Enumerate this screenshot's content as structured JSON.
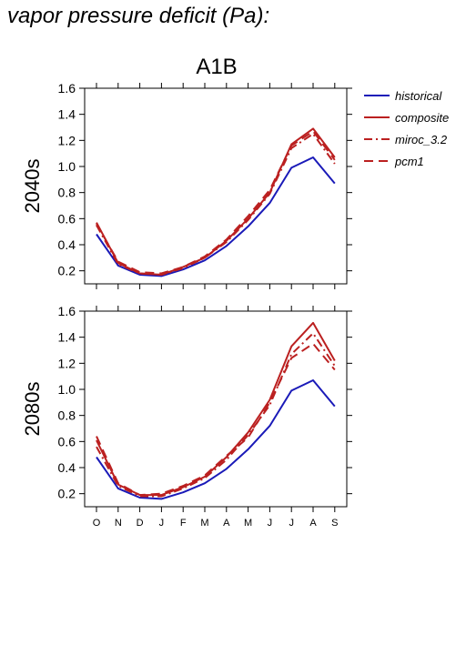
{
  "page": {
    "title": "vapor pressure deficit (Pa):"
  },
  "legend": [
    {
      "name": "historical",
      "color": "#1a1ab8",
      "dash": "solid"
    },
    {
      "name": "composite",
      "color": "#bb2020",
      "dash": "solid"
    },
    {
      "name": "miroc_3.2",
      "color": "#bb2020",
      "dash": "dashdot"
    },
    {
      "name": "pcm1",
      "color": "#bb2020",
      "dash": "dashed"
    }
  ],
  "chart_data": [
    {
      "type": "line",
      "title": "A1B",
      "ylabel": "2040s",
      "xlabel": "",
      "categories": [
        "O",
        "N",
        "D",
        "J",
        "F",
        "M",
        "A",
        "M",
        "J",
        "J",
        "A",
        "S"
      ],
      "ylim": [
        0.1,
        1.6
      ],
      "yticks": [
        "0.2",
        "0.4",
        "0.6",
        "0.8",
        "1.0",
        "1.2",
        "1.4",
        "1.6"
      ],
      "show_x_ticklabels": false,
      "series": [
        {
          "name": "historical",
          "values": [
            0.48,
            0.24,
            0.17,
            0.16,
            0.21,
            0.28,
            0.39,
            0.54,
            0.72,
            0.99,
            1.07,
            0.87
          ]
        },
        {
          "name": "composite",
          "values": [
            0.57,
            0.26,
            0.18,
            0.17,
            0.23,
            0.3,
            0.43,
            0.6,
            0.8,
            1.17,
            1.29,
            1.07
          ]
        },
        {
          "name": "miroc_3.2",
          "values": [
            0.55,
            0.25,
            0.18,
            0.17,
            0.22,
            0.3,
            0.42,
            0.59,
            0.79,
            1.14,
            1.25,
            1.02
          ]
        },
        {
          "name": "pcm1",
          "values": [
            0.56,
            0.27,
            0.19,
            0.18,
            0.23,
            0.31,
            0.44,
            0.62,
            0.82,
            1.16,
            1.27,
            1.05
          ]
        }
      ]
    },
    {
      "type": "line",
      "title": "",
      "ylabel": "2080s",
      "xlabel": "",
      "categories": [
        "O",
        "N",
        "D",
        "J",
        "F",
        "M",
        "A",
        "M",
        "J",
        "J",
        "A",
        "S"
      ],
      "ylim": [
        0.1,
        1.6
      ],
      "yticks": [
        "0.2",
        "0.4",
        "0.6",
        "0.8",
        "1.0",
        "1.2",
        "1.4",
        "1.6"
      ],
      "show_x_ticklabels": true,
      "series": [
        {
          "name": "historical",
          "values": [
            0.48,
            0.24,
            0.17,
            0.16,
            0.21,
            0.28,
            0.39,
            0.54,
            0.72,
            0.99,
            1.07,
            0.87
          ]
        },
        {
          "name": "composite",
          "values": [
            0.61,
            0.27,
            0.19,
            0.19,
            0.25,
            0.33,
            0.48,
            0.67,
            0.92,
            1.33,
            1.51,
            1.22
          ]
        },
        {
          "name": "miroc_3.2",
          "values": [
            0.56,
            0.26,
            0.18,
            0.18,
            0.24,
            0.32,
            0.46,
            0.65,
            0.88,
            1.27,
            1.43,
            1.18
          ]
        },
        {
          "name": "pcm1",
          "values": [
            0.64,
            0.28,
            0.19,
            0.2,
            0.26,
            0.34,
            0.49,
            0.63,
            0.9,
            1.24,
            1.35,
            1.15
          ]
        }
      ]
    }
  ]
}
